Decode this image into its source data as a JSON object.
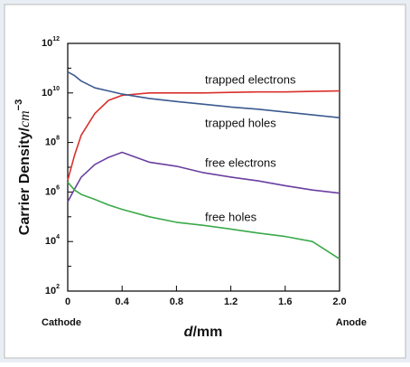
{
  "chart_data": {
    "type": "line",
    "ylabel": "Carrier Density/",
    "ylabel_unit": "cm",
    "ylabel_unit_exponent": "−3",
    "xlabel_symbol": "d",
    "xlabel_unit": "/mm",
    "annotations": [
      "Cathode",
      "Anode"
    ],
    "ylog": true,
    "xlim": [
      0,
      2
    ],
    "xticks": [
      0,
      0.4,
      0.8,
      1.2,
      1.6,
      {
        "value": 2,
        "label": "2.0"
      }
    ],
    "ylim": [
      100,
      1000000000000
    ],
    "yticks": [
      {
        "value": 100,
        "label": "10",
        "exponent": "2"
      },
      {
        "value": 10000,
        "label": "10",
        "exponent": "4"
      },
      {
        "value": 1000000,
        "label": "10",
        "exponent": "6"
      },
      {
        "value": 100000000,
        "label": "10",
        "exponent": "8"
      },
      {
        "value": 10000000000,
        "label": "10",
        "exponent": "10"
      },
      {
        "value": 1000000000000,
        "label": "10",
        "exponent": "12"
      }
    ],
    "x": [
      0,
      0.05,
      0.1,
      0.2,
      0.3,
      0.4,
      0.6,
      0.8,
      1.0,
      1.2,
      1.4,
      1.6,
      1.8,
      2.0
    ],
    "series": [
      {
        "name": "trapped electrons",
        "color": "#d9302c",
        "values": [
          3000000.0,
          30000000.0,
          200000000.0,
          1500000000.0,
          5000000000.0,
          8000000000.0,
          10000000000.0,
          10000000000.0,
          10000000000.0,
          10500000000.0,
          11000000000.0,
          11000000000.0,
          11500000000.0,
          12000000000.0
        ]
      },
      {
        "name": "trapped holes",
        "color": "#3b5a8f",
        "values": [
          70000000000.0,
          50000000000.0,
          30000000000.0,
          16000000000.0,
          12000000000.0,
          9000000000.0,
          6000000000.0,
          4500000000.0,
          3500000000.0,
          2700000000.0,
          2200000000.0,
          1700000000.0,
          1300000000.0,
          1000000000.0
        ]
      },
      {
        "name": "free electrons",
        "color": "#6a3fa0",
        "values": [
          400000.0,
          1300000.0,
          4000000.0,
          13000000.0,
          25000000.0,
          40000000.0,
          16000000.0,
          11000000.0,
          6000000.0,
          4000000.0,
          2800000.0,
          1800000.0,
          1200000.0,
          900000.0
        ]
      },
      {
        "name": "free holes",
        "color": "#3aaa4a",
        "values": [
          2500000.0,
          1200000.0,
          800000.0,
          500000.0,
          300000.0,
          200000.0,
          100000.0,
          60000.0,
          45000.0,
          32000.0,
          22000.0,
          16000.0,
          10000.0,
          2000.0
        ]
      }
    ]
  }
}
